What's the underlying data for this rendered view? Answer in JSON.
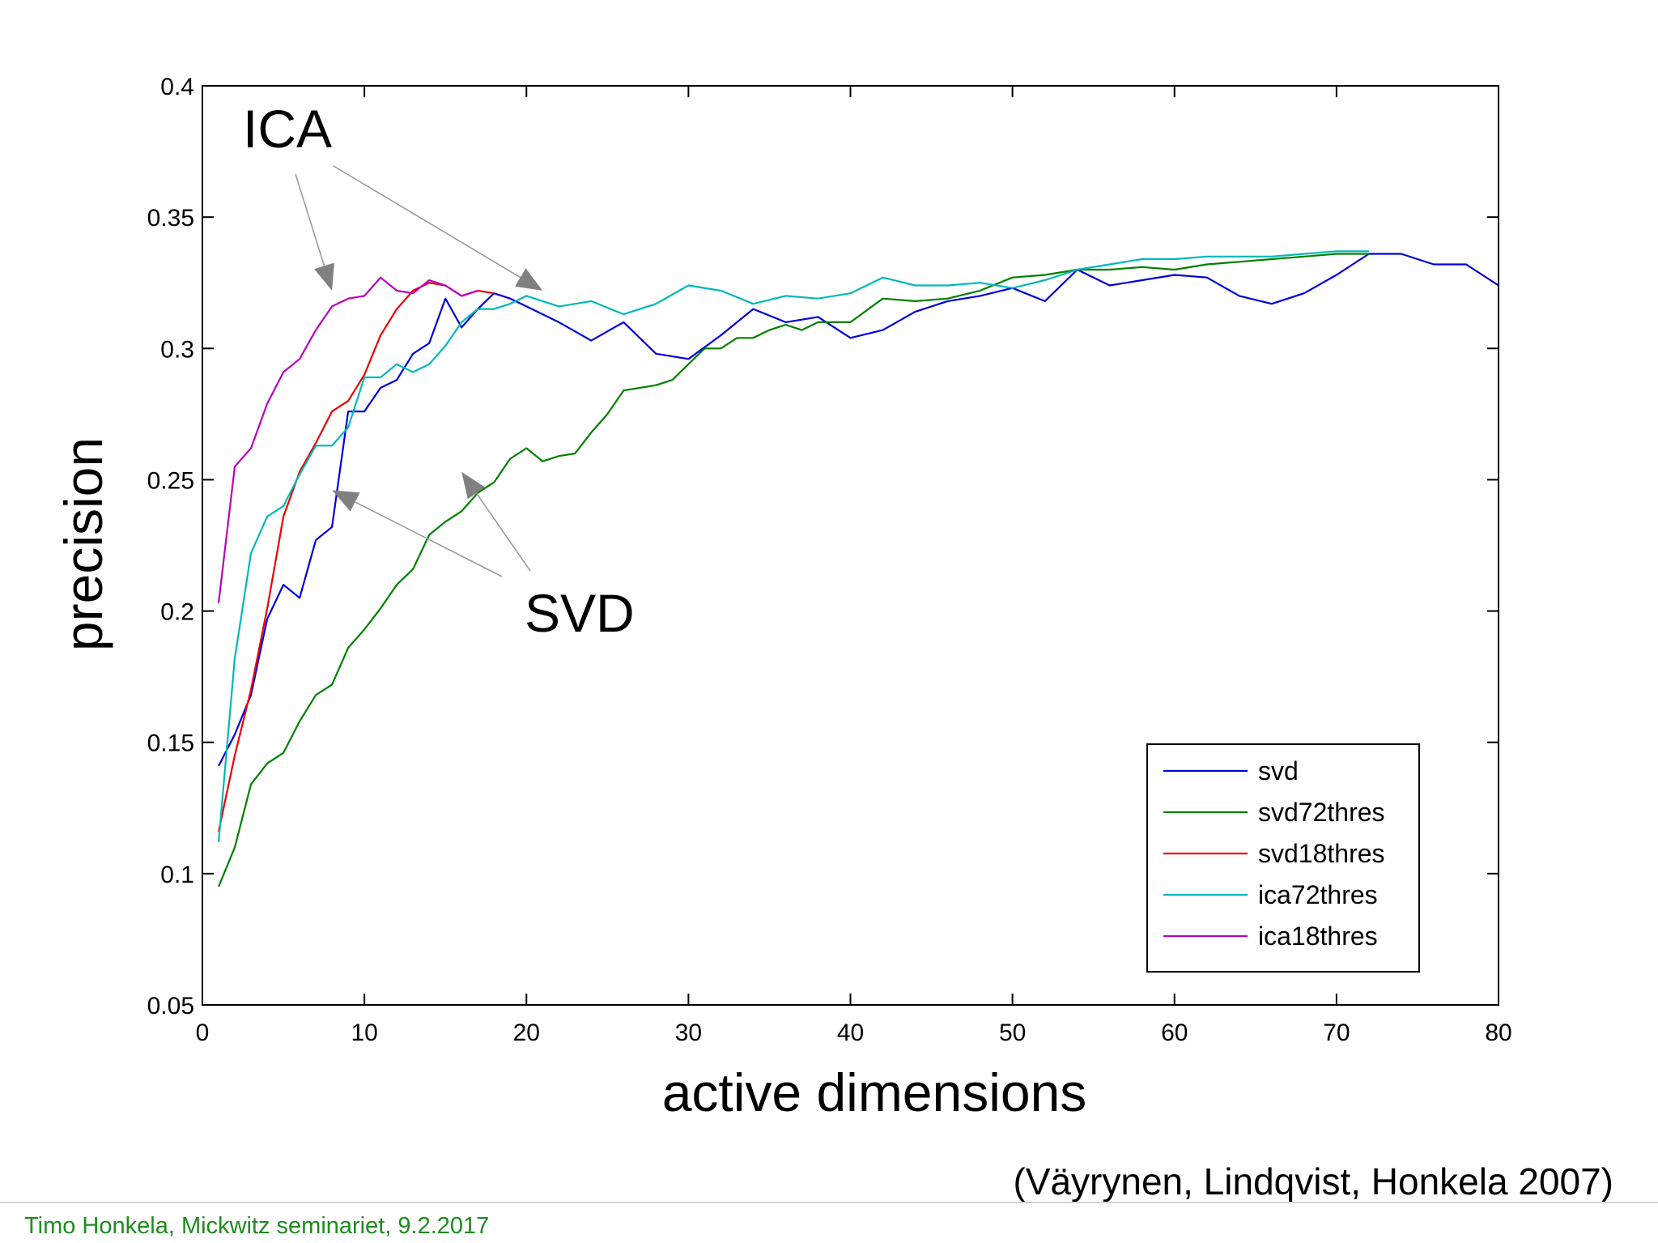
{
  "chart_data": {
    "type": "line",
    "title": "",
    "xlabel": "active dimensions",
    "ylabel": "precision",
    "xlim": [
      0,
      80
    ],
    "ylim": [
      0.05,
      0.4
    ],
    "xticks": [
      0,
      10,
      20,
      30,
      40,
      50,
      60,
      70,
      80
    ],
    "xtick_labels": [
      "0",
      "10",
      "20",
      "30",
      "40",
      "50",
      "60",
      "70",
      "80"
    ],
    "yticks": [
      0.05,
      0.1,
      0.15,
      0.2,
      0.25,
      0.3,
      0.35,
      0.4
    ],
    "ytick_labels": [
      "0.05",
      "0.1",
      "0.15",
      "0.2",
      "0.25",
      "0.3",
      "0.35",
      "0.4"
    ],
    "grid": false,
    "legend_position": "bottom-right",
    "annotations": [
      {
        "text": "ICA",
        "points_to": [
          [
            8,
            0.322
          ],
          [
            21,
            0.322
          ]
        ]
      },
      {
        "text": "SVD",
        "points_to": [
          [
            8,
            0.246
          ],
          [
            16,
            0.253
          ]
        ]
      }
    ],
    "series": [
      {
        "name": "svd",
        "color": "#0000dd",
        "x": [
          1,
          2,
          3,
          4,
          5,
          6,
          7,
          8,
          9,
          10,
          11,
          12,
          13,
          14,
          15,
          16,
          17,
          18,
          19,
          20,
          22,
          24,
          26,
          28,
          30,
          32,
          34,
          36,
          38,
          40,
          42,
          44,
          46,
          48,
          50,
          52,
          54,
          56,
          58,
          60,
          62,
          64,
          66,
          68,
          70,
          72,
          74,
          76,
          78,
          80
        ],
        "values": [
          0.141,
          0.153,
          0.168,
          0.197,
          0.21,
          0.205,
          0.227,
          0.232,
          0.276,
          0.276,
          0.285,
          0.288,
          0.298,
          0.302,
          0.319,
          0.308,
          0.315,
          0.321,
          0.319,
          0.316,
          0.31,
          0.303,
          0.31,
          0.298,
          0.296,
          0.305,
          0.315,
          0.31,
          0.312,
          0.304,
          0.307,
          0.314,
          0.318,
          0.32,
          0.323,
          0.318,
          0.33,
          0.324,
          0.326,
          0.328,
          0.327,
          0.32,
          0.317,
          0.321,
          0.328,
          0.336,
          0.336,
          0.332,
          0.332,
          0.324
        ]
      },
      {
        "name": "svd72thres",
        "color": "#008000",
        "x": [
          1,
          2,
          3,
          4,
          5,
          6,
          7,
          8,
          9,
          10,
          11,
          12,
          13,
          14,
          15,
          16,
          17,
          18,
          19,
          20,
          21,
          22,
          23,
          24,
          25,
          26,
          27,
          28,
          29,
          30,
          31,
          32,
          33,
          34,
          35,
          36,
          37,
          38,
          40,
          42,
          44,
          46,
          48,
          50,
          52,
          54,
          56,
          58,
          60,
          62,
          64,
          66,
          68,
          70,
          72
        ],
        "values": [
          0.095,
          0.11,
          0.134,
          0.142,
          0.146,
          0.158,
          0.168,
          0.172,
          0.186,
          0.193,
          0.201,
          0.21,
          0.216,
          0.229,
          0.234,
          0.238,
          0.245,
          0.249,
          0.258,
          0.262,
          0.257,
          0.259,
          0.26,
          0.268,
          0.275,
          0.284,
          0.285,
          0.286,
          0.288,
          0.294,
          0.3,
          0.3,
          0.304,
          0.304,
          0.307,
          0.309,
          0.307,
          0.31,
          0.31,
          0.319,
          0.318,
          0.319,
          0.322,
          0.327,
          0.328,
          0.33,
          0.33,
          0.331,
          0.33,
          0.332,
          0.333,
          0.334,
          0.335,
          0.336,
          0.336
        ]
      },
      {
        "name": "svd18thres",
        "color": "#ee0000",
        "x": [
          1,
          2,
          3,
          4,
          5,
          6,
          7,
          8,
          9,
          10,
          11,
          12,
          13,
          14,
          15,
          16,
          17,
          18
        ],
        "values": [
          0.116,
          0.145,
          0.17,
          0.201,
          0.236,
          0.253,
          0.264,
          0.276,
          0.28,
          0.29,
          0.305,
          0.315,
          0.322,
          0.325,
          0.324,
          0.32,
          0.322,
          0.321
        ]
      },
      {
        "name": "ica72thres",
        "color": "#00b8b8",
        "x": [
          1,
          2,
          3,
          4,
          5,
          6,
          7,
          8,
          9,
          10,
          11,
          12,
          13,
          14,
          15,
          16,
          17,
          18,
          19,
          20,
          22,
          24,
          26,
          28,
          30,
          32,
          34,
          36,
          38,
          40,
          42,
          44,
          46,
          48,
          50,
          52,
          54,
          56,
          58,
          60,
          62,
          64,
          66,
          68,
          70,
          72
        ],
        "values": [
          0.112,
          0.182,
          0.222,
          0.236,
          0.24,
          0.252,
          0.263,
          0.263,
          0.27,
          0.289,
          0.289,
          0.294,
          0.291,
          0.294,
          0.301,
          0.31,
          0.315,
          0.315,
          0.317,
          0.32,
          0.316,
          0.318,
          0.313,
          0.317,
          0.324,
          0.322,
          0.317,
          0.32,
          0.319,
          0.321,
          0.327,
          0.324,
          0.324,
          0.325,
          0.323,
          0.326,
          0.33,
          0.332,
          0.334,
          0.334,
          0.335,
          0.335,
          0.335,
          0.336,
          0.337,
          0.337
        ]
      },
      {
        "name": "ica18thres",
        "color": "#bb00bb",
        "x": [
          1,
          2,
          3,
          4,
          5,
          6,
          7,
          8,
          9,
          10,
          11,
          12,
          13,
          14,
          15,
          16,
          17
        ],
        "values": [
          0.203,
          0.255,
          0.262,
          0.279,
          0.291,
          0.296,
          0.307,
          0.316,
          0.319,
          0.32,
          0.327,
          0.322,
          0.321,
          0.326,
          0.324,
          0.32,
          0.322
        ]
      }
    ]
  },
  "citation": "(Väyrynen, Lindqvist, Honkela 2007)",
  "footer": "Timo Honkela, Mickwitz seminariet, 9.2.2017"
}
